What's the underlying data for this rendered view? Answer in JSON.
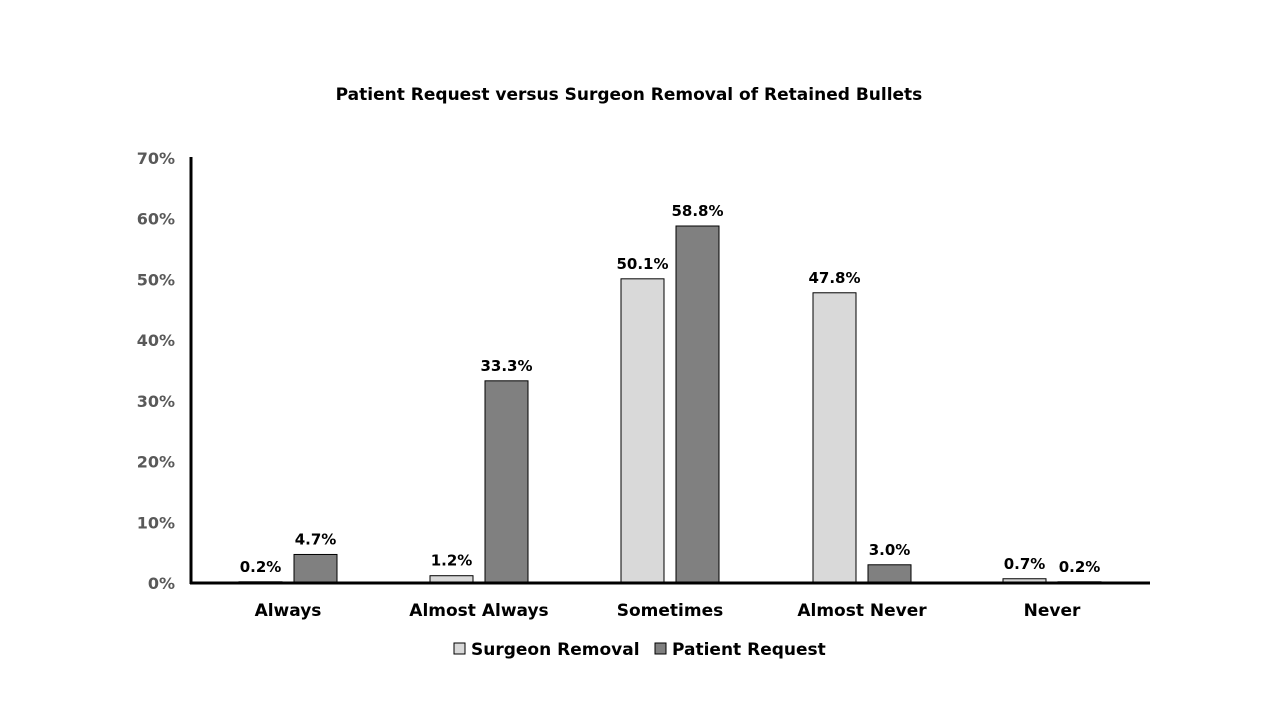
{
  "chart_data": {
    "type": "bar",
    "title": "Patient Request versus Surgeon Removal of Retained Bullets",
    "categories": [
      "Always",
      "Almost Always",
      "Sometimes",
      "Almost Never",
      "Never"
    ],
    "series": [
      {
        "name": "Surgeon Removal",
        "values": [
          0.2,
          1.2,
          50.1,
          47.8,
          0.7
        ],
        "labels": [
          "0.2%",
          "1.2%",
          "50.1%",
          "47.8%",
          "0.7%"
        ],
        "color": "#d9d9d9"
      },
      {
        "name": "Patient Request",
        "values": [
          4.7,
          33.3,
          58.8,
          3.0,
          0.2
        ],
        "labels": [
          "4.7%",
          "33.3%",
          "58.8%",
          "3.0%",
          "0.2%"
        ],
        "color": "#808080"
      }
    ],
    "ylim": [
      0,
      70
    ],
    "yticks": [
      "0%",
      "10%",
      "20%",
      "30%",
      "40%",
      "50%",
      "60%",
      "70%"
    ],
    "grid": false,
    "legend": "bottom"
  }
}
